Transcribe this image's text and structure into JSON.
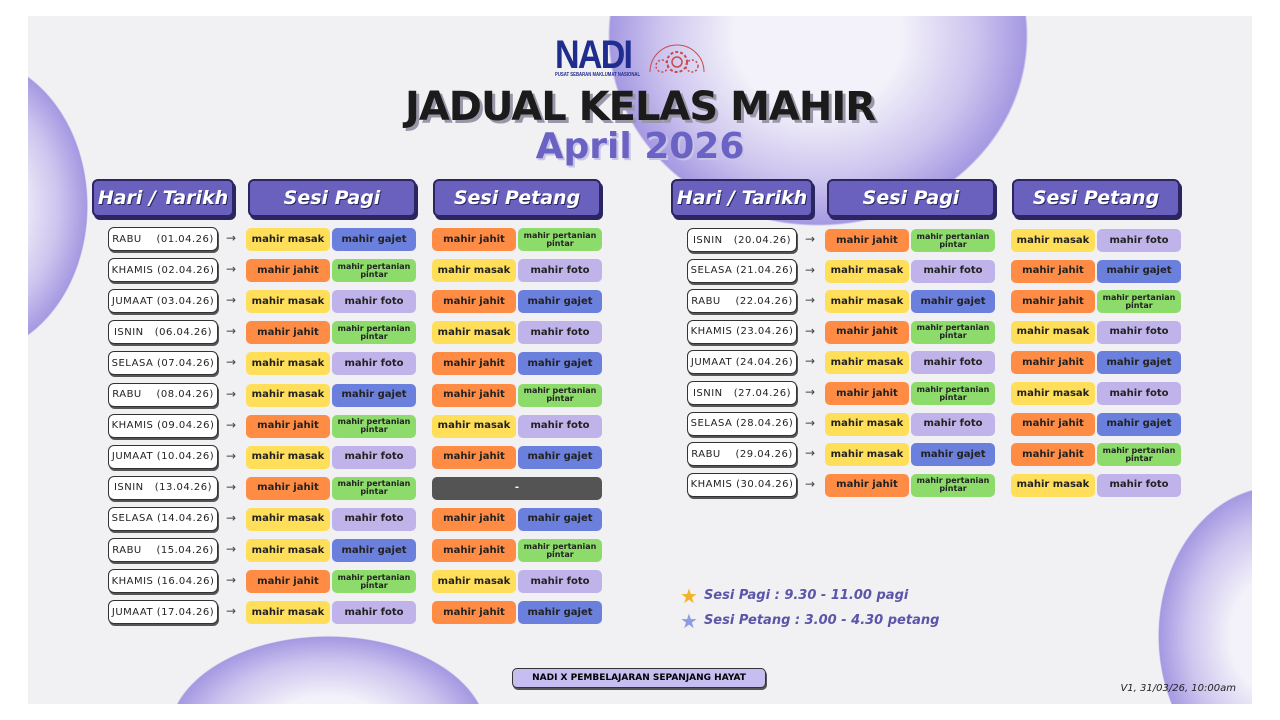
{
  "logo": {
    "name": "NADI",
    "tagline": "PUSAT SEBARAN MAKLUMAT NASIONAL",
    "seal_text": "PERKASA KOMUNITI NADI PGAUU"
  },
  "title": "JADUAL KELAS MAHIR",
  "subtitle": "April 2026",
  "headers": {
    "date": "Hari / Tarikh",
    "pagi": "Sesi Pagi",
    "petang": "Sesi Petang"
  },
  "arrow": "→",
  "classes": {
    "masak": {
      "label": "mahir masak",
      "color": "#ffde59"
    },
    "gajet": {
      "label": "mahir gajet",
      "color": "#6b7fdc"
    },
    "jahit": {
      "label": "mahir jahit",
      "color": "#ff8c45"
    },
    "pertanian": {
      "label": "mahir pertanian pintar",
      "color": "#8ddc6b"
    },
    "foto": {
      "label": "mahir foto",
      "color": "#bfb3ea"
    },
    "none": {
      "label": "-",
      "color": "#545454"
    }
  },
  "left_rows": [
    {
      "date": "RABU    (01.04.26)",
      "pagi": [
        "masak",
        "gajet"
      ],
      "petang": [
        "jahit",
        "pertanian"
      ]
    },
    {
      "date": "KHAMIS (02.04.26)",
      "pagi": [
        "jahit",
        "pertanian"
      ],
      "petang": [
        "masak",
        "foto"
      ]
    },
    {
      "date": "JUMAAT (03.04.26)",
      "pagi": [
        "masak",
        "foto"
      ],
      "petang": [
        "jahit",
        "gajet"
      ]
    },
    {
      "date": "ISNIN   (06.04.26)",
      "pagi": [
        "jahit",
        "pertanian"
      ],
      "petang": [
        "masak",
        "foto"
      ]
    },
    {
      "date": "SELASA (07.04.26)",
      "pagi": [
        "masak",
        "foto"
      ],
      "petang": [
        "jahit",
        "gajet"
      ]
    },
    {
      "date": "RABU    (08.04.26)",
      "pagi": [
        "masak",
        "gajet"
      ],
      "petang": [
        "jahit",
        "pertanian"
      ]
    },
    {
      "date": "KHAMIS (09.04.26)",
      "pagi": [
        "jahit",
        "pertanian"
      ],
      "petang": [
        "masak",
        "foto"
      ]
    },
    {
      "date": "JUMAAT (10.04.26)",
      "pagi": [
        "masak",
        "foto"
      ],
      "petang": [
        "jahit",
        "gajet"
      ]
    },
    {
      "date": "ISNIN   (13.04.26)",
      "pagi": [
        "jahit",
        "pertanian"
      ],
      "petang": [
        "none"
      ]
    },
    {
      "date": "SELASA (14.04.26)",
      "pagi": [
        "masak",
        "foto"
      ],
      "petang": [
        "jahit",
        "gajet"
      ]
    },
    {
      "date": "RABU    (15.04.26)",
      "pagi": [
        "masak",
        "gajet"
      ],
      "petang": [
        "jahit",
        "pertanian"
      ]
    },
    {
      "date": "KHAMIS (16.04.26)",
      "pagi": [
        "jahit",
        "pertanian"
      ],
      "petang": [
        "masak",
        "foto"
      ]
    },
    {
      "date": "JUMAAT (17.04.26)",
      "pagi": [
        "masak",
        "foto"
      ],
      "petang": [
        "jahit",
        "gajet"
      ]
    }
  ],
  "right_rows": [
    {
      "date": "ISNIN   (20.04.26)",
      "pagi": [
        "jahit",
        "pertanian"
      ],
      "petang": [
        "masak",
        "foto"
      ]
    },
    {
      "date": "SELASA (21.04.26)",
      "pagi": [
        "masak",
        "foto"
      ],
      "petang": [
        "jahit",
        "gajet"
      ]
    },
    {
      "date": "RABU    (22.04.26)",
      "pagi": [
        "masak",
        "gajet"
      ],
      "petang": [
        "jahit",
        "pertanian"
      ]
    },
    {
      "date": "KHAMIS (23.04.26)",
      "pagi": [
        "jahit",
        "pertanian"
      ],
      "petang": [
        "masak",
        "foto"
      ]
    },
    {
      "date": "JUMAAT (24.04.26)",
      "pagi": [
        "masak",
        "foto"
      ],
      "petang": [
        "jahit",
        "gajet"
      ]
    },
    {
      "date": "ISNIN   (27.04.26)",
      "pagi": [
        "jahit",
        "pertanian"
      ],
      "petang": [
        "masak",
        "foto"
      ]
    },
    {
      "date": "SELASA (28.04.26)",
      "pagi": [
        "masak",
        "foto"
      ],
      "petang": [
        "jahit",
        "gajet"
      ]
    },
    {
      "date": "RABU    (29.04.26)",
      "pagi": [
        "masak",
        "gajet"
      ],
      "petang": [
        "jahit",
        "pertanian"
      ]
    },
    {
      "date": "KHAMIS (30.04.26)",
      "pagi": [
        "jahit",
        "pertanian"
      ],
      "petang": [
        "masak",
        "foto"
      ]
    }
  ],
  "legend": [
    {
      "text": "Sesi Pagi : 9.30 - 11.00 pagi",
      "star_color": "#f2b322"
    },
    {
      "text": "Sesi Petang : 3.00 - 4.30 petang",
      "star_color": "#8f9ae6"
    }
  ],
  "footer": "NADI X PEMBELAJARAN SEPANJANG HAYAT",
  "version": "V1, 31/03/26, 10:00am"
}
